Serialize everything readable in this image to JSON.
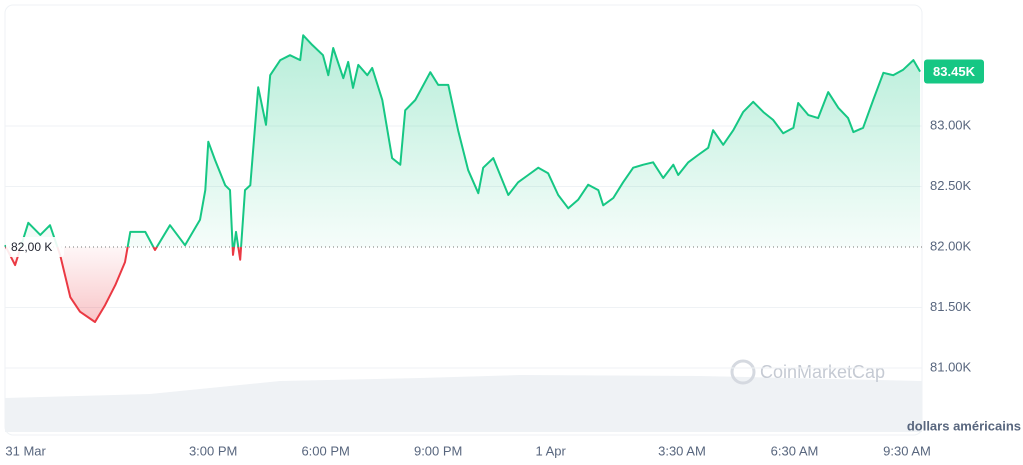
{
  "chart_data": {
    "type": "line",
    "x": [
      9.45,
      9.72,
      10.07,
      10.39,
      10.65,
      10.92,
      11.19,
      11.45,
      11.85,
      12.12,
      12.39,
      12.65,
      12.79,
      13.19,
      13.45,
      13.85,
      14.25,
      14.65,
      14.79,
      14.87,
      15.05,
      15.32,
      15.45,
      15.53,
      15.61,
      15.72,
      15.85,
      15.99,
      16.2,
      16.41,
      16.52,
      16.79,
      17.05,
      17.32,
      17.4,
      17.64,
      17.93,
      18.07,
      18.2,
      18.47,
      18.6,
      18.73,
      18.87,
      19.11,
      19.24,
      19.51,
      19.77,
      19.99,
      20.12,
      20.39,
      20.79,
      21.0,
      21.27,
      21.53,
      21.8,
      22.07,
      22.2,
      22.47,
      22.87,
      23.13,
      23.4,
      23.67,
      23.93,
      24.2,
      24.47,
      24.73,
      25.0,
      25.27,
      25.4,
      25.67,
      25.93,
      26.2,
      26.47,
      26.73,
      27.0,
      27.27,
      27.4,
      27.67,
      27.93,
      28.2,
      28.33,
      28.6,
      28.87,
      29.13,
      29.4,
      29.67,
      29.93,
      30.2,
      30.47,
      30.6,
      30.87,
      31.13,
      31.4,
      31.67,
      31.93,
      32.07,
      32.33,
      32.6,
      32.87,
      33.13,
      33.4,
      33.67,
      33.85
    ],
    "series": [
      {
        "color": "#16c784",
        "values": [
          82015,
          81850,
          82200,
          82100,
          82180,
          81935,
          81585,
          81465,
          81380,
          81520,
          81685,
          81875,
          82125,
          82125,
          81975,
          82180,
          82015,
          82225,
          82470,
          82870,
          82720,
          82510,
          82470,
          81935,
          82125,
          81895,
          82470,
          82510,
          83320,
          83010,
          83420,
          83545,
          83585,
          83545,
          83750,
          83670,
          83585,
          83420,
          83645,
          83395,
          83530,
          83315,
          83505,
          83420,
          83480,
          83215,
          82735,
          82680,
          83130,
          83215,
          83445,
          83340,
          83340,
          82965,
          82635,
          82445,
          82655,
          82735,
          82430,
          82535,
          82595,
          82655,
          82610,
          82430,
          82320,
          82390,
          82515,
          82470,
          82345,
          82405,
          82535,
          82655,
          82680,
          82700,
          82570,
          82680,
          82595,
          82700,
          82760,
          82820,
          82965,
          82845,
          82965,
          83115,
          83200,
          83115,
          83050,
          82940,
          82985,
          83190,
          83090,
          83065,
          83280,
          83150,
          83065,
          82950,
          82985,
          83215,
          83440,
          83420,
          83465,
          83545,
          83450
        ]
      }
    ],
    "down_color": "#ea3943",
    "baseline": {
      "value": 82000,
      "label": "82,00 K"
    },
    "price_tag": {
      "value": 83450,
      "label": "83.45K"
    },
    "xlim": [
      9.45,
      33.9
    ],
    "xticks": [
      {
        "value": 10,
        "label": "31 Mar"
      },
      {
        "value": 15,
        "label": "3:00 PM"
      },
      {
        "value": 18,
        "label": "6:00 PM"
      },
      {
        "value": 21,
        "label": "9:00 PM"
      },
      {
        "value": 24,
        "label": "1 Apr"
      },
      {
        "value": 27.5,
        "label": "3:30 AM"
      },
      {
        "value": 30.5,
        "label": "6:30 AM"
      },
      {
        "value": 33.5,
        "label": "9:30 AM"
      }
    ],
    "ylim": [
      80500,
      84000
    ],
    "yticks": [
      {
        "value": 81000,
        "label": "81.00K"
      },
      {
        "value": 81500,
        "label": "81.50K"
      },
      {
        "value": 82000,
        "label": "82.00K"
      },
      {
        "value": 82500,
        "label": "82.50K"
      },
      {
        "value": 83000,
        "label": "83.00K"
      }
    ],
    "grid": true,
    "currency_label": "dollars américains",
    "watermark": "CoinMarketCap"
  }
}
